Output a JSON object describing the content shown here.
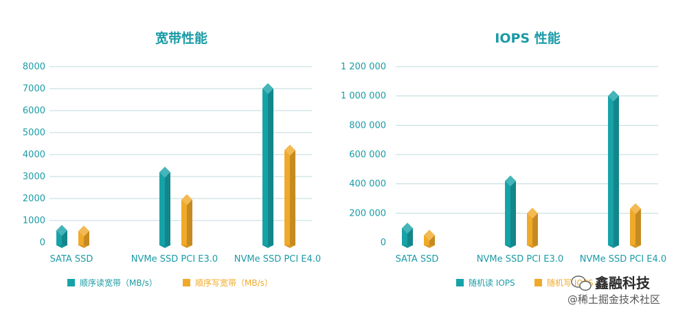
{
  "colors": {
    "teal": "#16a3a8",
    "orange": "#f0a928",
    "text": "#1a9ba6",
    "grid": "#bfd9dc",
    "watermark": "#333333"
  },
  "chart_data": [
    {
      "type": "bar",
      "title": "宽带性能",
      "categories": [
        "SATA SSD",
        "NVMe SSD PCI E3.0",
        "NVMe SSD PCI E4.0"
      ],
      "series": [
        {
          "name": "顺序读宽带（MB/s）",
          "color": "#16a3a8",
          "values": [
            550,
            3200,
            7000
          ]
        },
        {
          "name": "顺序写宽带（MB/s）",
          "color": "#f0a928",
          "values": [
            520,
            1950,
            4200
          ]
        }
      ],
      "yticks": [
        "0",
        "1000",
        "2000",
        "3000",
        "4000",
        "5000",
        "6000",
        "7000",
        "8000"
      ],
      "ylim": [
        0,
        8000
      ],
      "grid": true,
      "legend": "bottom"
    },
    {
      "type": "bar",
      "title": "IOPS 性能",
      "categories": [
        "SATA SSD",
        "NVMe SSD PCI E3.0",
        "NVMe SSD PCI E4.0"
      ],
      "series": [
        {
          "name": "随机读 IOPS",
          "color": "#16a3a8",
          "values": [
            98000,
            420000,
            1000000
          ]
        },
        {
          "name": "随机写 IOPS",
          "color": "#f0a928",
          "values": [
            50000,
            200000,
            230000
          ]
        }
      ],
      "yticks": [
        "0",
        "200 000",
        "400 000",
        "600 000",
        "800 000",
        "1 000 000",
        "1 200 000"
      ],
      "ylim": [
        0,
        1200000
      ],
      "grid": true,
      "legend": "bottom"
    }
  ],
  "watermark": {
    "line1": "鑫融科技",
    "line2": "@稀土掘金技术社区"
  }
}
